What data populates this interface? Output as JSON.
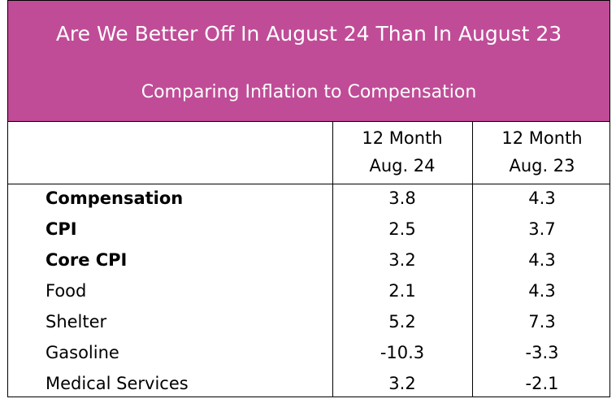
{
  "chart_data": {
    "type": "table",
    "title": "Are We Better Off In August 24 Than In August 23",
    "subtitle": "Comparing Inflation to Compensation",
    "columns": [
      {
        "line1": "12 Month",
        "line2": "Aug. 24"
      },
      {
        "line1": "12 Month",
        "line2": "Aug. 23"
      }
    ],
    "rows": [
      {
        "label": "Compensation",
        "bold": true,
        "values": [
          "3.8",
          "4.3"
        ]
      },
      {
        "label": "CPI",
        "bold": true,
        "values": [
          "2.5",
          "3.7"
        ]
      },
      {
        "label": "Core CPI",
        "bold": true,
        "values": [
          "3.2",
          "4.3"
        ]
      },
      {
        "label": "Food",
        "bold": false,
        "values": [
          "2.1",
          "4.3"
        ]
      },
      {
        "label": "Shelter",
        "bold": false,
        "values": [
          "5.2",
          "7.3"
        ]
      },
      {
        "label": "Gasoline",
        "bold": false,
        "values": [
          "-10.3",
          "-3.3"
        ]
      },
      {
        "label": "Medical Services",
        "bold": false,
        "values": [
          "3.2",
          "-2.1"
        ]
      }
    ]
  },
  "colors": {
    "header_background": "#c04c97",
    "header_text": "#ffffff",
    "grid": "#000000"
  }
}
